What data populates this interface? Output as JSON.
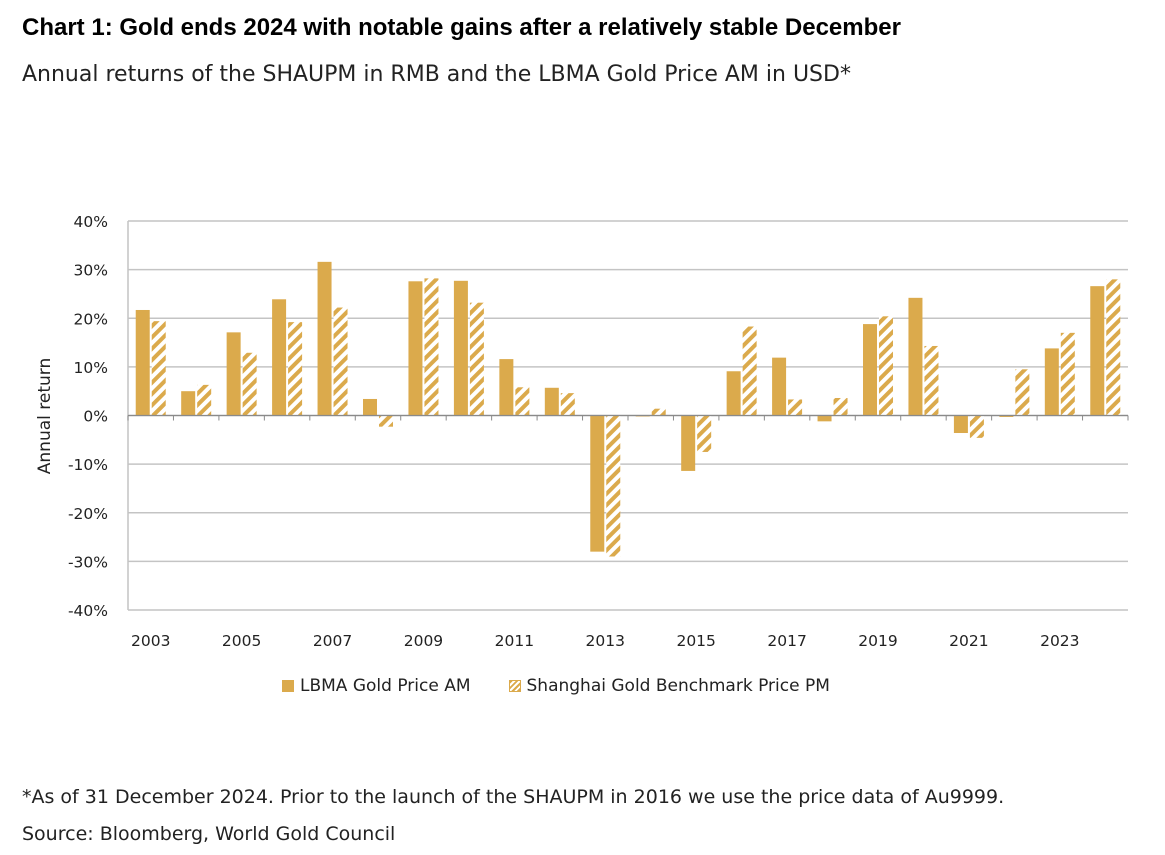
{
  "chart_data": {
    "type": "bar",
    "title": "Chart 1: Gold ends 2024 with notable gains after a relatively stable December",
    "subtitle": "Annual returns of the SHAUPM in RMB and the LBMA Gold Price AM in USD*",
    "xlabel": "",
    "ylabel": "Annual return",
    "ylim": [
      -40,
      40
    ],
    "y_ticks": [
      40,
      30,
      20,
      10,
      0,
      -10,
      -20,
      -30,
      -40
    ],
    "y_tick_labels": [
      "40%",
      "30%",
      "20%",
      "10%",
      "0%",
      "-10%",
      "-20%",
      "-30%",
      "-40%"
    ],
    "categories": [
      "2003",
      "2004",
      "2005",
      "2006",
      "2007",
      "2008",
      "2009",
      "2010",
      "2011",
      "2012",
      "2013",
      "2014",
      "2015",
      "2016",
      "2017",
      "2018",
      "2019",
      "2020",
      "2021",
      "2022",
      "2023",
      "2024"
    ],
    "x_tick_labels": [
      "2003",
      "",
      "2005",
      "",
      "2007",
      "",
      "2009",
      "",
      "2011",
      "",
      "2013",
      "",
      "2015",
      "",
      "2017",
      "",
      "2019",
      "",
      "2021",
      "",
      "2023",
      ""
    ],
    "grid": true,
    "legend_position": "bottom",
    "series": [
      {
        "name": "LBMA Gold Price AM",
        "color": "#dbaa4c",
        "style": "solid",
        "values": [
          21.7,
          5.0,
          17.1,
          23.9,
          31.6,
          3.4,
          27.6,
          27.7,
          11.6,
          5.7,
          -28.0,
          -0.2,
          -11.4,
          9.1,
          11.9,
          -1.2,
          18.8,
          24.2,
          -3.6,
          -0.3,
          13.8,
          26.6
        ]
      },
      {
        "name": "Shanghai Gold Benchmark Price PM",
        "color": "#dbaa4c",
        "style": "hatched",
        "values": [
          19.4,
          6.3,
          12.9,
          19.2,
          22.2,
          -2.3,
          28.2,
          23.2,
          5.8,
          4.6,
          -29.0,
          1.4,
          -7.5,
          18.3,
          3.3,
          3.6,
          20.4,
          14.3,
          -4.6,
          9.5,
          17.0,
          28.0
        ]
      }
    ]
  },
  "notes": {
    "asof": "*As of 31 December 2024. Prior to the launch of the SHAUPM in 2016 we use the price data of Au9999.",
    "source": "Source: Bloomberg, World Gold Council"
  }
}
